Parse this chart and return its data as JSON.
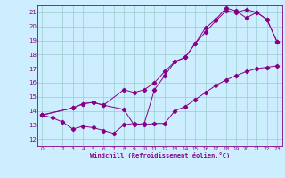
{
  "xlabel": "Windchill (Refroidissement éolien,°C)",
  "bg_color": "#cceeff",
  "line_color": "#880088",
  "grid_color": "#99cccc",
  "xlim": [
    -0.5,
    23.5
  ],
  "ylim": [
    11.5,
    21.5
  ],
  "xticks": [
    0,
    1,
    2,
    3,
    4,
    5,
    6,
    7,
    8,
    9,
    10,
    11,
    12,
    13,
    14,
    15,
    16,
    17,
    18,
    19,
    20,
    21,
    22,
    23
  ],
  "yticks": [
    12,
    13,
    14,
    15,
    16,
    17,
    18,
    19,
    20,
    21
  ],
  "line1_x": [
    0,
    1,
    2,
    3,
    4,
    5,
    6,
    7,
    8,
    9,
    10,
    11,
    12,
    13,
    14,
    15,
    16,
    17,
    18,
    19,
    20,
    21,
    22,
    23
  ],
  "line1_y": [
    13.7,
    13.5,
    13.2,
    12.7,
    12.9,
    12.8,
    12.6,
    12.4,
    13.0,
    13.1,
    13.0,
    13.1,
    13.1,
    14.0,
    14.3,
    14.8,
    15.3,
    15.8,
    16.2,
    16.5,
    16.8,
    17.0,
    17.1,
    17.2
  ],
  "line2_x": [
    0,
    3,
    4,
    5,
    6,
    8,
    9,
    10,
    11,
    12,
    13,
    14,
    15,
    16,
    17,
    18,
    19,
    20,
    21,
    22,
    23
  ],
  "line2_y": [
    13.7,
    14.2,
    14.5,
    14.6,
    14.4,
    15.5,
    15.3,
    15.5,
    16.0,
    16.8,
    17.5,
    17.8,
    18.8,
    19.6,
    20.4,
    21.1,
    21.0,
    21.2,
    21.0,
    20.5,
    18.9
  ],
  "line3_x": [
    0,
    3,
    4,
    5,
    6,
    8,
    9,
    10,
    11,
    12,
    13,
    14,
    15,
    16,
    17,
    18,
    19,
    20,
    21,
    22,
    23
  ],
  "line3_y": [
    13.7,
    14.2,
    14.5,
    14.6,
    14.4,
    14.1,
    13.0,
    13.1,
    15.5,
    16.5,
    17.5,
    17.8,
    18.8,
    19.9,
    20.5,
    21.3,
    21.1,
    20.6,
    21.0,
    20.5,
    18.9
  ]
}
